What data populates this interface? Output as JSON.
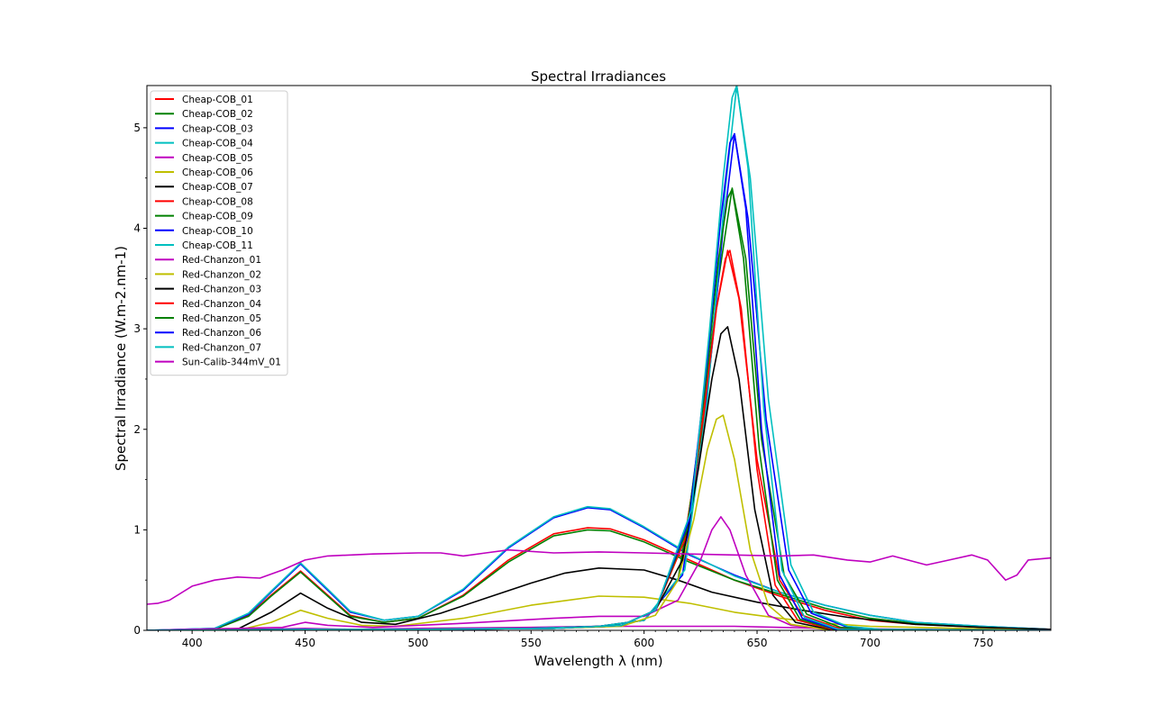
{
  "chart_data": {
    "type": "line",
    "title": "Spectral Irradiances",
    "xlabel": "Wavelength λ (nm)",
    "ylabel": "Spectral Irradiance (W.m-2.nm-1)",
    "xlim": [
      380,
      780
    ],
    "ylim": [
      0,
      5.42
    ],
    "xticks": [
      400,
      450,
      500,
      550,
      600,
      650,
      700,
      750
    ],
    "yticks": [
      0,
      1,
      2,
      3,
      4,
      5
    ],
    "grid": false,
    "legend_position": "top-left",
    "colors": {
      "red": "#ff0000",
      "green": "#008000",
      "blue": "#0000ff",
      "cyan": "#00bfbf",
      "magenta": "#bf00bf",
      "olive": "#bfbf00",
      "black": "#000000"
    },
    "series": [
      {
        "name": "Cheap-COB_01",
        "color": "red",
        "x": [
          380,
          410,
          425,
          435,
          448,
          460,
          470,
          485,
          500,
          520,
          540,
          560,
          575,
          585,
          600,
          620,
          640,
          660,
          680,
          700,
          720,
          750,
          780
        ],
        "y": [
          0,
          0.01,
          0.15,
          0.35,
          0.59,
          0.35,
          0.15,
          0.08,
          0.12,
          0.35,
          0.7,
          0.96,
          1.02,
          1.01,
          0.9,
          0.7,
          0.5,
          0.34,
          0.2,
          0.1,
          0.06,
          0.03,
          0.01
        ]
      },
      {
        "name": "Cheap-COB_02",
        "color": "green",
        "x": [
          380,
          410,
          425,
          435,
          448,
          460,
          470,
          485,
          500,
          520,
          540,
          560,
          575,
          585,
          600,
          620,
          640,
          660,
          680,
          700,
          720,
          750,
          780
        ],
        "y": [
          0,
          0.01,
          0.14,
          0.34,
          0.58,
          0.34,
          0.14,
          0.08,
          0.12,
          0.34,
          0.68,
          0.94,
          1.0,
          0.99,
          0.88,
          0.68,
          0.5,
          0.36,
          0.22,
          0.12,
          0.07,
          0.03,
          0.01
        ]
      },
      {
        "name": "Cheap-COB_03",
        "color": "blue",
        "x": [
          380,
          410,
          425,
          435,
          448,
          460,
          470,
          485,
          500,
          520,
          540,
          560,
          575,
          585,
          600,
          620,
          640,
          660,
          680,
          700,
          720,
          750,
          780
        ],
        "y": [
          0,
          0.02,
          0.16,
          0.38,
          0.66,
          0.4,
          0.18,
          0.1,
          0.14,
          0.4,
          0.82,
          1.12,
          1.22,
          1.2,
          1.02,
          0.75,
          0.55,
          0.38,
          0.25,
          0.15,
          0.08,
          0.04,
          0.01
        ]
      },
      {
        "name": "Cheap-COB_04",
        "color": "cyan",
        "x": [
          380,
          410,
          425,
          435,
          448,
          460,
          470,
          485,
          500,
          520,
          540,
          560,
          575,
          585,
          600,
          620,
          640,
          660,
          680,
          700,
          720,
          750,
          780
        ],
        "y": [
          0,
          0.02,
          0.17,
          0.39,
          0.67,
          0.41,
          0.19,
          0.1,
          0.14,
          0.41,
          0.83,
          1.13,
          1.23,
          1.21,
          1.03,
          0.76,
          0.54,
          0.38,
          0.25,
          0.15,
          0.08,
          0.04,
          0.01
        ]
      },
      {
        "name": "Cheap-COB_05",
        "color": "magenta",
        "x": [
          380,
          430,
          450,
          470,
          500,
          550,
          580,
          610,
          640,
          660,
          680,
          720,
          780
        ],
        "y": [
          0,
          0.01,
          0.02,
          0.01,
          0.02,
          0.03,
          0.04,
          0.04,
          0.04,
          0.03,
          0.02,
          0.01,
          0
        ]
      },
      {
        "name": "Cheap-COB_06",
        "color": "olive",
        "x": [
          380,
          420,
          435,
          448,
          460,
          475,
          490,
          520,
          550,
          580,
          600,
          620,
          640,
          660,
          680,
          700,
          740,
          780
        ],
        "y": [
          0,
          0,
          0.08,
          0.2,
          0.12,
          0.05,
          0.04,
          0.12,
          0.25,
          0.34,
          0.33,
          0.27,
          0.18,
          0.12,
          0.07,
          0.04,
          0.02,
          0
        ]
      },
      {
        "name": "Cheap-COB_07",
        "color": "black",
        "x": [
          380,
          420,
          435,
          448,
          460,
          475,
          490,
          510,
          530,
          550,
          565,
          580,
          600,
          615,
          630,
          650,
          670,
          690,
          720,
          750,
          780
        ],
        "y": [
          0,
          0.01,
          0.18,
          0.37,
          0.22,
          0.08,
          0.06,
          0.17,
          0.32,
          0.47,
          0.57,
          0.62,
          0.6,
          0.5,
          0.38,
          0.28,
          0.2,
          0.13,
          0.06,
          0.03,
          0.01
        ]
      },
      {
        "name": "Cheap-COB_08",
        "color": "red",
        "x": [
          380,
          450,
          500,
          550,
          580,
          600,
          615,
          625,
          632,
          637,
          642,
          650,
          660,
          670,
          685,
          700,
          780
        ],
        "y": [
          0,
          0.01,
          0.01,
          0.02,
          0.04,
          0.1,
          0.5,
          1.8,
          3.2,
          3.78,
          3.3,
          1.7,
          0.5,
          0.15,
          0.03,
          0.01,
          0
        ]
      },
      {
        "name": "Cheap-COB_09",
        "color": "green",
        "x": [
          380,
          450,
          500,
          550,
          580,
          600,
          615,
          625,
          633,
          639,
          645,
          652,
          662,
          672,
          687,
          702,
          780
        ],
        "y": [
          0,
          0.01,
          0.01,
          0.02,
          0.04,
          0.1,
          0.5,
          1.9,
          3.5,
          4.4,
          3.7,
          1.9,
          0.55,
          0.16,
          0.03,
          0.01,
          0
        ]
      },
      {
        "name": "Cheap-COB_10",
        "color": "blue",
        "x": [
          380,
          450,
          500,
          550,
          580,
          600,
          617,
          627,
          635,
          640,
          646,
          654,
          664,
          674,
          689,
          704,
          780
        ],
        "y": [
          0,
          0.01,
          0.01,
          0.02,
          0.04,
          0.1,
          0.55,
          2.1,
          4.0,
          4.94,
          4.1,
          2.1,
          0.6,
          0.17,
          0.04,
          0.01,
          0
        ]
      },
      {
        "name": "Cheap-COB_11",
        "color": "cyan",
        "x": [
          380,
          450,
          500,
          550,
          580,
          600,
          618,
          628,
          636,
          641,
          647,
          655,
          665,
          675,
          690,
          705,
          780
        ],
        "y": [
          0,
          0.01,
          0.01,
          0.02,
          0.04,
          0.1,
          0.6,
          2.3,
          4.4,
          5.42,
          4.5,
          2.3,
          0.65,
          0.18,
          0.04,
          0.01,
          0
        ]
      },
      {
        "name": "Red-Chanzon_01",
        "color": "magenta",
        "x": [
          380,
          440,
          450,
          460,
          480,
          520,
          560,
          580,
          600,
          615,
          625,
          630,
          634,
          638,
          645,
          655,
          665,
          680,
          780
        ],
        "y": [
          0,
          0.03,
          0.08,
          0.05,
          0.03,
          0.07,
          0.12,
          0.14,
          0.14,
          0.3,
          0.7,
          1.0,
          1.13,
          1.0,
          0.55,
          0.15,
          0.05,
          0.01,
          0
        ]
      },
      {
        "name": "Red-Chanzon_02",
        "color": "olive",
        "x": [
          380,
          500,
          560,
          590,
          605,
          615,
          622,
          628,
          632,
          635,
          640,
          647,
          655,
          665,
          680,
          780
        ],
        "y": [
          0,
          0.01,
          0.02,
          0.04,
          0.15,
          0.5,
          1.1,
          1.8,
          2.1,
          2.14,
          1.7,
          0.8,
          0.25,
          0.06,
          0.01,
          0
        ]
      },
      {
        "name": "Red-Chanzon_03",
        "color": "black",
        "x": [
          380,
          500,
          560,
          590,
          605,
          617,
          624,
          630,
          634,
          637,
          642,
          649,
          657,
          667,
          682,
          780
        ],
        "y": [
          0,
          0.01,
          0.02,
          0.05,
          0.2,
          0.7,
          1.6,
          2.5,
          2.95,
          3.02,
          2.5,
          1.2,
          0.35,
          0.08,
          0.01,
          0
        ]
      },
      {
        "name": "Red-Chanzon_04",
        "color": "red",
        "x": [
          380,
          500,
          560,
          590,
          605,
          618,
          626,
          632,
          636,
          638,
          643,
          650,
          658,
          668,
          683,
          780
        ],
        "y": [
          0,
          0.01,
          0.02,
          0.05,
          0.2,
          0.9,
          2.1,
          3.2,
          3.7,
          3.78,
          3.2,
          1.6,
          0.45,
          0.1,
          0.01,
          0
        ]
      },
      {
        "name": "Red-Chanzon_05",
        "color": "green",
        "x": [
          380,
          500,
          560,
          590,
          605,
          619,
          627,
          633,
          637,
          639,
          644,
          651,
          659,
          669,
          684,
          780
        ],
        "y": [
          0,
          0.01,
          0.02,
          0.05,
          0.2,
          1.0,
          2.4,
          3.7,
          4.3,
          4.39,
          3.7,
          1.8,
          0.5,
          0.11,
          0.01,
          0
        ]
      },
      {
        "name": "Red-Chanzon_06",
        "color": "blue",
        "x": [
          380,
          500,
          560,
          590,
          605,
          620,
          628,
          634,
          638,
          640,
          645,
          652,
          660,
          670,
          685,
          780
        ],
        "y": [
          0,
          0.01,
          0.02,
          0.05,
          0.2,
          1.1,
          2.7,
          4.1,
          4.85,
          4.94,
          4.2,
          2.0,
          0.55,
          0.12,
          0.01,
          0
        ]
      },
      {
        "name": "Red-Chanzon_07",
        "color": "cyan",
        "x": [
          380,
          500,
          560,
          590,
          605,
          621,
          629,
          635,
          639,
          641,
          646,
          653,
          661,
          671,
          686,
          780
        ],
        "y": [
          0,
          0.01,
          0.02,
          0.05,
          0.2,
          1.2,
          3.0,
          4.5,
          5.3,
          5.42,
          4.6,
          2.2,
          0.6,
          0.13,
          0.01,
          0
        ]
      },
      {
        "name": "Sun-Calib-344mV_01",
        "color": "magenta",
        "x": [
          380,
          385,
          390,
          400,
          410,
          420,
          430,
          440,
          450,
          460,
          480,
          500,
          510,
          520,
          530,
          540,
          560,
          580,
          600,
          620,
          640,
          660,
          675,
          690,
          700,
          710,
          725,
          735,
          745,
          752,
          760,
          765,
          770,
          780
        ],
        "y": [
          0.26,
          0.27,
          0.3,
          0.44,
          0.5,
          0.53,
          0.52,
          0.6,
          0.7,
          0.74,
          0.76,
          0.77,
          0.77,
          0.74,
          0.77,
          0.8,
          0.77,
          0.78,
          0.77,
          0.76,
          0.75,
          0.74,
          0.75,
          0.7,
          0.68,
          0.74,
          0.65,
          0.7,
          0.75,
          0.7,
          0.5,
          0.55,
          0.7,
          0.72
        ]
      }
    ]
  }
}
